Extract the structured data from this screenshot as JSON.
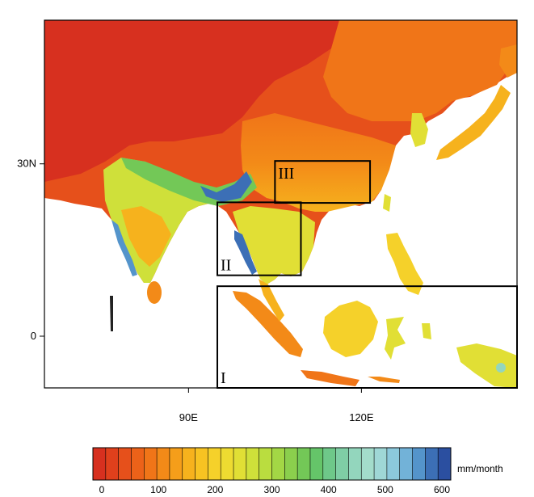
{
  "map": {
    "lat_ticks": [
      {
        "label": "30N",
        "lat": 30
      },
      {
        "label": "0",
        "lat": 0
      }
    ],
    "lon_ticks": [
      {
        "label": "90E",
        "lon": 90
      },
      {
        "label": "120E",
        "lon": 120
      }
    ],
    "extent": {
      "lon_min": 65,
      "lon_max": 147,
      "lat_min": -9,
      "lat_max": 55
    },
    "regions": [
      {
        "label": "I",
        "lon": [
          95,
          147
        ],
        "lat": [
          -9,
          8.7
        ]
      },
      {
        "label": "II",
        "lon": [
          95,
          109.5
        ],
        "lat": [
          10.6,
          23.3
        ]
      },
      {
        "label": "III",
        "lon": [
          105,
          121.5
        ],
        "lat": [
          23.2,
          30.5
        ]
      }
    ]
  },
  "colorbar": {
    "unit": "mm/month",
    "tick_labels": [
      "0",
      "100",
      "200",
      "300",
      "400",
      "500",
      "600"
    ],
    "vmin": 0,
    "vmax": 600,
    "colors": [
      "#d7301f",
      "#e0401c",
      "#e6501b",
      "#ec6219",
      "#f07518",
      "#f38a18",
      "#f59e1a",
      "#f6b21d",
      "#f7c322",
      "#f5d12a",
      "#eedb31",
      "#e1df35",
      "#cfe03a",
      "#badd3f",
      "#a3d745",
      "#8bcf4d",
      "#73c857",
      "#65c569",
      "#6ec889",
      "#7fcea5",
      "#93d6bd",
      "#a3dccb",
      "#9fd7d6",
      "#8cc9dc",
      "#72b2d8",
      "#5494cb",
      "#3c6fb6",
      "#2b4fa0"
    ]
  }
}
